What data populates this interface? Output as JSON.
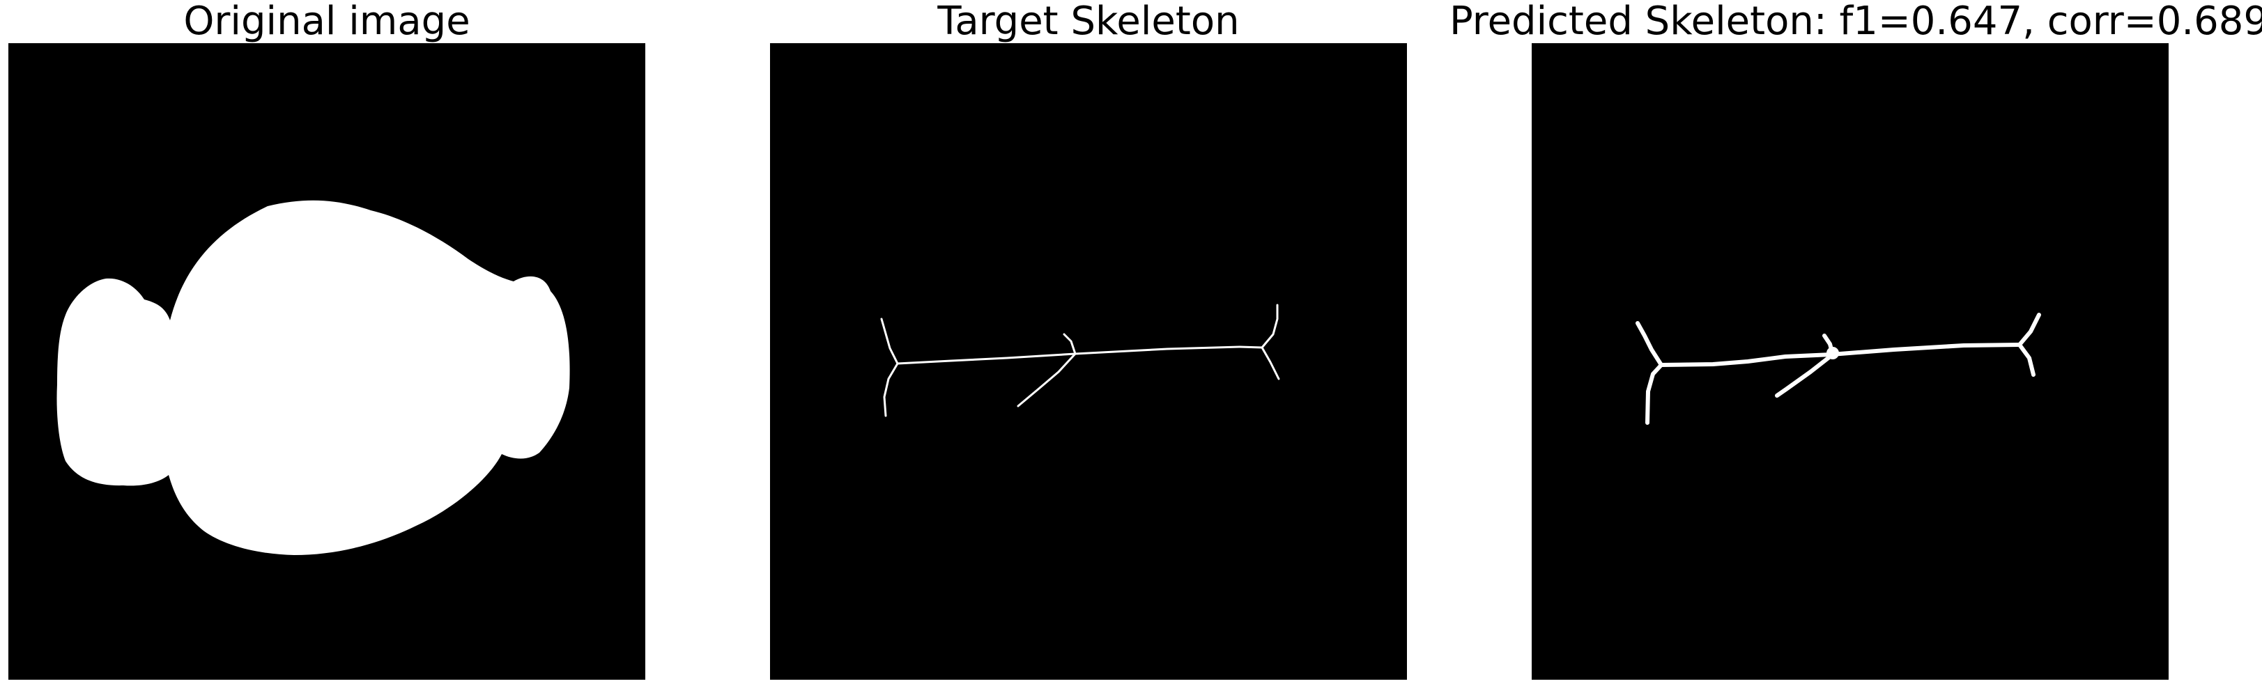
{
  "panels": [
    {
      "title": "Original image"
    },
    {
      "title": "Target Skeleton"
    },
    {
      "title": "Predicted Skeleton: f1=0.647, corr=0.689"
    }
  ],
  "colors": {
    "background": "#000000",
    "foreground": "#ffffff"
  }
}
